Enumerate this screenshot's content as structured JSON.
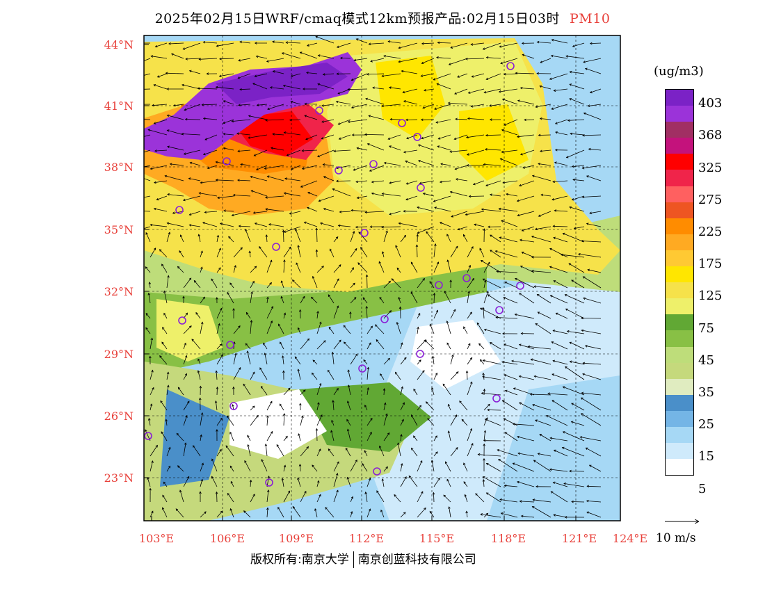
{
  "title": {
    "main": "2025年02月15日WRF/cmaq模式12km预报产品:02月15日03时",
    "pollutant": "PM10",
    "pollutant_color": "#e8403a"
  },
  "axes": {
    "lat_labels": [
      "44°N",
      "41°N",
      "38°N",
      "35°N",
      "32°N",
      "29°N",
      "26°N",
      "23°N"
    ],
    "lon_labels": [
      "103°E",
      "106°E",
      "109°E",
      "112°E",
      "115°E",
      "118°E",
      "121°E",
      "124°E"
    ],
    "label_color": "#e8403a"
  },
  "legend": {
    "unit": "(ug/m3)",
    "colors": [
      "#7b22c6",
      "#9b33d9",
      "#a12f63",
      "#c4127c",
      "#ff0000",
      "#f0244a",
      "#ff6060",
      "#ee5522",
      "#ff8c00",
      "#ffaa22",
      "#ffc933",
      "#ffe600",
      "#f6e24a",
      "#eef06a",
      "#61a834",
      "#88c045",
      "#bedd7a",
      "#c5d97c",
      "#e0ecc0",
      "#4a8fc9",
      "#74b5e6",
      "#a6d8f5",
      "#cfeafb",
      "#ffffff"
    ],
    "labels": [
      "403",
      "368",
      "325",
      "275",
      "225",
      "175",
      "125",
      "75",
      "45",
      "35",
      "25",
      "15",
      "5"
    ],
    "label_rows": [
      1,
      3,
      5,
      7,
      9,
      11,
      13,
      15,
      17,
      19,
      21,
      23,
      25
    ]
  },
  "wind_scale": {
    "label": "10 m/s"
  },
  "footer": {
    "left": "版权所有:南京大学",
    "right": "南京创蓝科技有限公司"
  }
}
